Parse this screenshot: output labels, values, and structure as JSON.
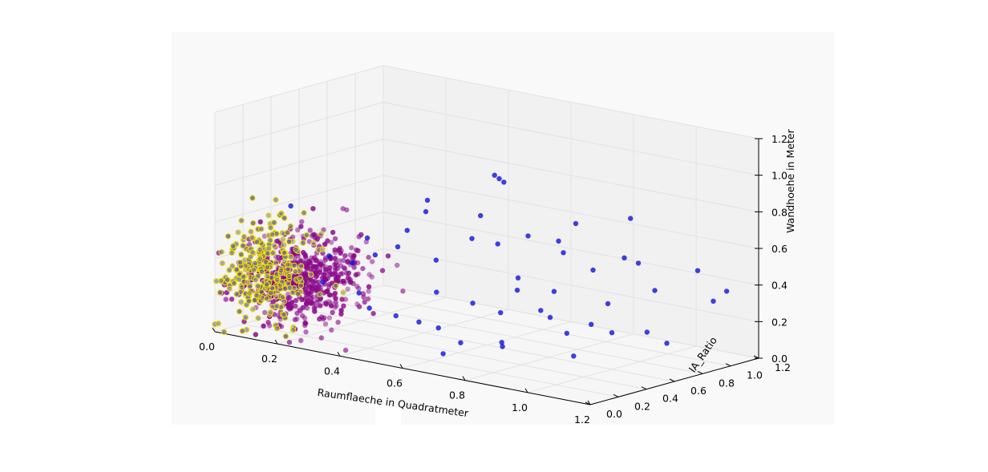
{
  "chart_data": {
    "type": "scatter",
    "projection": "3d",
    "xlabel": "Raumflaeche in Quadratmeter",
    "ylabel": "IA_Ratio",
    "zlabel": "Wandhoehe in Meter",
    "xlim": [
      0,
      1.2
    ],
    "ylim": [
      0,
      1.2
    ],
    "zlim": [
      0,
      1.2
    ],
    "x_ticks": [
      "0.0",
      "0.2",
      "0.4",
      "0.6",
      "0.8",
      "1.0",
      "1.2"
    ],
    "y_ticks": [
      "0.0",
      "0.2",
      "0.4",
      "0.6",
      "0.8",
      "1.0",
      "1.2"
    ],
    "z_ticks": [
      "0.0",
      "0.2",
      "0.4",
      "0.6",
      "0.8",
      "1.0",
      "1.2"
    ],
    "grid": true,
    "legend": "none",
    "colors": {
      "pane": "#f2f2f2",
      "grid": "#e2e2e2",
      "axis": "#000000",
      "series_blue": "#1111dd",
      "series_purple": "#8a0a8a",
      "series_yellow_edge": "#f5e000",
      "series_grey_fill": "#6a6f80"
    },
    "series": [
      {
        "color": "#1111dd",
        "x": [
          0.22,
          0.32,
          0.45,
          0.52,
          0.55,
          0.58,
          0.42,
          0.48,
          0.62,
          0.65,
          0.75,
          0.88,
          0.95,
          1.05,
          1.12,
          0.35,
          0.4,
          0.58,
          0.68,
          0.8,
          0.95,
          0.5,
          0.62,
          0.7,
          0.85,
          0.98,
          1.1,
          0.45,
          0.55,
          0.72,
          0.92,
          0.6,
          0.78,
          0.88,
          1.0,
          0.52,
          0.68,
          0.82,
          1.05,
          0.3,
          0.38,
          0.48,
          0.58,
          0.66,
          0.74,
          0.9,
          0.76,
          0.54,
          0.44,
          1.0,
          0.84,
          0.64,
          0.86
        ],
        "y": [
          0.05,
          0.1,
          0.5,
          0.9,
          0.8,
          0.7,
          0.15,
          0.3,
          0.85,
          1.0,
          0.9,
          1.0,
          0.8,
          1.1,
          1.15,
          0.2,
          0.25,
          0.6,
          0.5,
          0.7,
          0.9,
          0.4,
          0.45,
          0.6,
          0.8,
          0.95,
          1.1,
          0.3,
          0.35,
          0.55,
          0.75,
          0.5,
          0.65,
          0.72,
          0.85,
          0.42,
          0.52,
          0.68,
          0.88,
          0.1,
          0.18,
          0.22,
          0.3,
          0.28,
          0.4,
          0.55,
          0.35,
          0.25,
          0.12,
          0.6,
          0.45,
          0.2,
          0.5
        ],
        "z": [
          0.75,
          0.5,
          0.7,
          0.8,
          0.85,
          0.9,
          0.62,
          0.65,
          0.55,
          0.5,
          0.65,
          0.7,
          0.55,
          0.45,
          0.35,
          0.45,
          0.5,
          0.7,
          0.6,
          0.55,
          0.5,
          0.8,
          0.62,
          0.4,
          0.45,
          0.35,
          0.3,
          0.55,
          0.5,
          0.35,
          0.3,
          0.25,
          0.2,
          0.18,
          0.15,
          0.3,
          0.22,
          0.12,
          0.1,
          0.35,
          0.3,
          0.2,
          0.15,
          0.1,
          0.08,
          0.05,
          0.12,
          0.18,
          0.25,
          0.2,
          0.3,
          0.05,
          0.4
        ]
      },
      {
        "color": "#8a0a8a",
        "distribution": {
          "x_mean": 0.22,
          "x_sd": 0.1,
          "y_mean": 0.15,
          "y_sd": 0.08,
          "z_mean": 0.25,
          "z_sd": 0.12,
          "count": 520
        }
      },
      {
        "color": "#6a6f80",
        "edge_color": "#f5e000",
        "distribution": {
          "x_mean": 0.1,
          "x_sd": 0.07,
          "y_mean": 0.12,
          "y_sd": 0.07,
          "z_mean": 0.3,
          "z_sd": 0.15,
          "count": 260
        }
      }
    ]
  }
}
